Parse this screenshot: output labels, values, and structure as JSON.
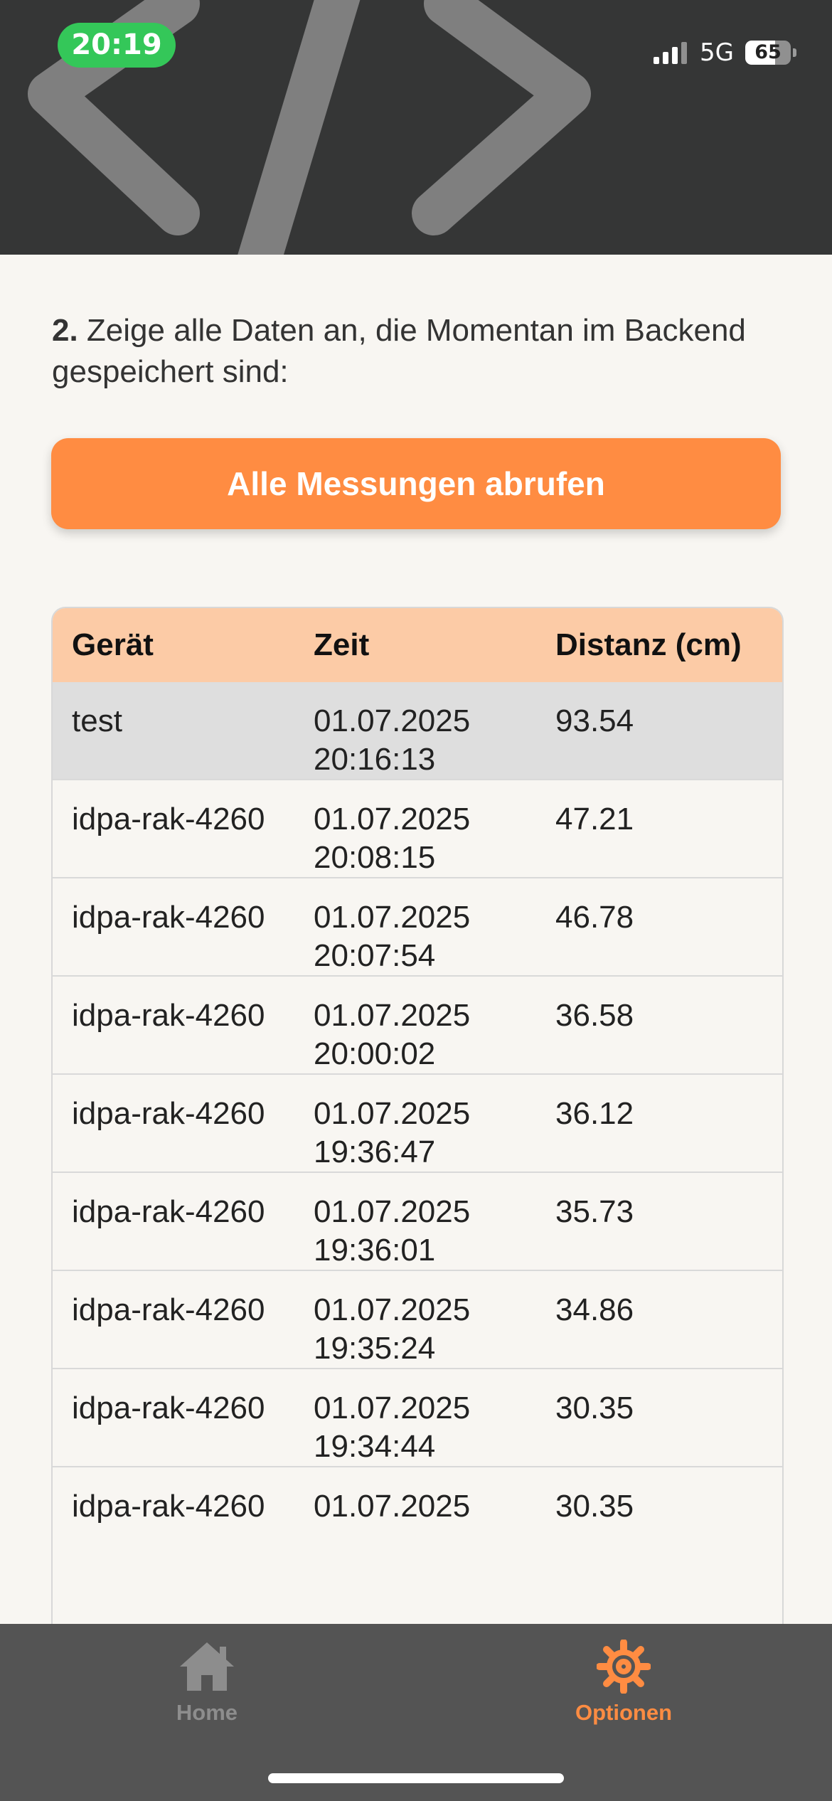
{
  "status_bar": {
    "time": "20:19",
    "network": "5G",
    "battery": "65",
    "battery_level": 0.65
  },
  "instruction": {
    "number": "2.",
    "text": " Zeige alle Daten an, die Momentan im Backend gespeichert sind:"
  },
  "fetch_button_label": "Alle Messungen abrufen",
  "table": {
    "headers": [
      "Gerät",
      "Zeit",
      "Distanz (cm)"
    ],
    "rows": [
      {
        "device": "test",
        "date": "01.07.2025",
        "time": "20:16:13",
        "distance": "93.54"
      },
      {
        "device": "idpa-rak-4260",
        "date": "01.07.2025",
        "time": "20:08:15",
        "distance": "47.21"
      },
      {
        "device": "idpa-rak-4260",
        "date": "01.07.2025",
        "time": "20:07:54",
        "distance": "46.78"
      },
      {
        "device": "idpa-rak-4260",
        "date": "01.07.2025",
        "time": "20:00:02",
        "distance": "36.58"
      },
      {
        "device": "idpa-rak-4260",
        "date": "01.07.2025",
        "time": "19:36:47",
        "distance": "36.12"
      },
      {
        "device": "idpa-rak-4260",
        "date": "01.07.2025",
        "time": "19:36:01",
        "distance": "35.73"
      },
      {
        "device": "idpa-rak-4260",
        "date": "01.07.2025",
        "time": "19:35:24",
        "distance": "34.86"
      },
      {
        "device": "idpa-rak-4260",
        "date": "01.07.2025",
        "time": "19:34:44",
        "distance": "30.35"
      },
      {
        "device": "idpa-rak-4260",
        "date": "01.07.2025",
        "time": "",
        "distance": "30.35"
      }
    ]
  },
  "tabbar": {
    "home_label": "Home",
    "home_icon": "house-icon",
    "options_label": "Optionen",
    "options_icon": "gear-icon",
    "active_color": "#ff8c42",
    "inactive_color": "#8d8d8d"
  }
}
